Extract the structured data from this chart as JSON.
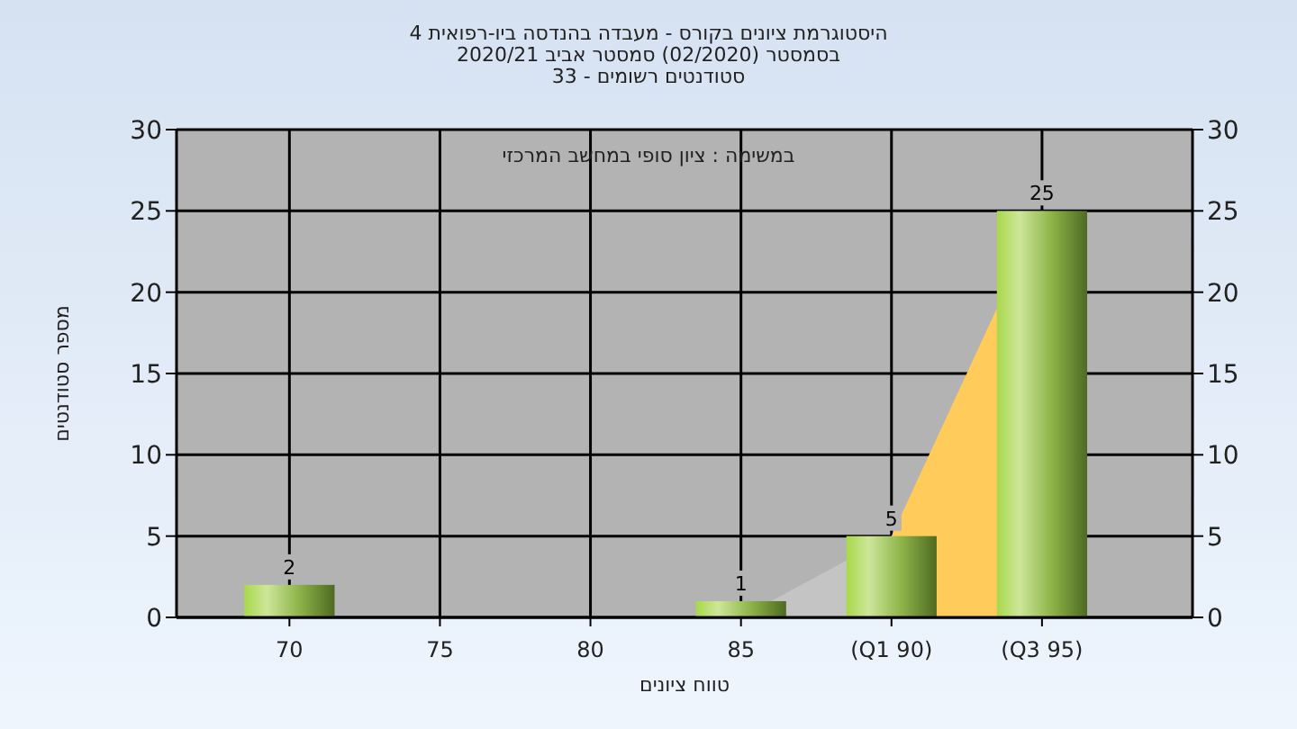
{
  "chart_data": {
    "type": "bar",
    "title": "היסטוגרמת ציונים בקורס - מעבדה בהנדסה ביו-רפואית 4",
    "subtitle": "בסמסטר  (02/2020)  סמסטר אביב 2020/21\nסטודנטים רשומים - 33",
    "xlabel": "טווח ציונים",
    "ylabel": "מספר סטודנטים",
    "annotations": [
      "במשימה : ציון סופי במחשב המרכזי"
    ],
    "categories": [
      "70",
      "75",
      "80",
      "85",
      "(Q1 90)",
      "(Q3 95)"
    ],
    "series": [
      {
        "type": "area",
        "color": "#c4c4c4",
        "values": [
          null,
          null,
          null,
          0,
          5,
          null
        ]
      },
      {
        "type": "area",
        "color": "#ffcc5c",
        "values": [
          null,
          null,
          null,
          null,
          5,
          25
        ]
      },
      {
        "color": "#8fb54a",
        "values": [
          2,
          0,
          0,
          1,
          5,
          25
        ],
        "value_labels": [
          "2",
          null,
          null,
          "1",
          "5",
          "25"
        ]
      }
    ],
    "ylim": [
      0,
      30
    ],
    "yticks": [
      0,
      5,
      10,
      15,
      20,
      25,
      30
    ],
    "y2lim": [
      0,
      30
    ],
    "y2ticks": [
      0,
      5,
      10,
      15,
      20,
      25,
      30
    ],
    "grid": true
  }
}
